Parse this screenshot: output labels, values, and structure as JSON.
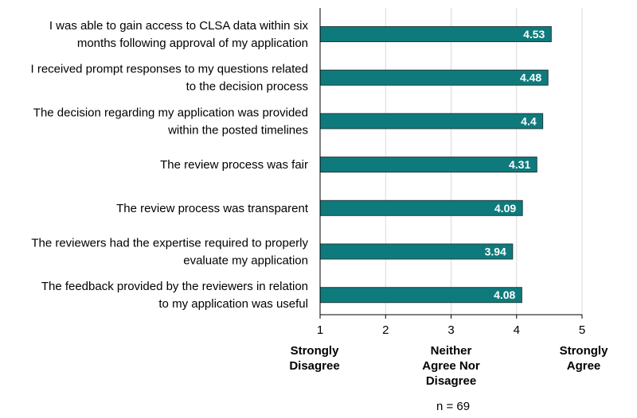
{
  "chart_data": {
    "type": "bar",
    "orientation": "horizontal",
    "categories": [
      [
        "I was able to gain access to CLSA data within six",
        "months following approval of my application"
      ],
      [
        "I received prompt responses to my questions related",
        "to the decision process"
      ],
      [
        "The decision regarding my application was provided",
        "within the posted timelines"
      ],
      [
        "The review process was fair"
      ],
      [
        "The review process was transparent"
      ],
      [
        "The reviewers had the expertise required to properly",
        "evaluate my application"
      ],
      [
        "The feedback provided by the reviewers in relation",
        "to my application was useful"
      ]
    ],
    "values": [
      4.53,
      4.48,
      4.4,
      4.31,
      4.09,
      3.94,
      4.08
    ],
    "value_labels": [
      "4.53",
      "4.48",
      "4.4",
      "4.31",
      "4.09",
      "3.94",
      "4.08"
    ],
    "xlim": [
      1,
      5
    ],
    "xticks": [
      1,
      2,
      3,
      4,
      5
    ],
    "anchor_labels": [
      {
        "at": 1,
        "lines": [
          "Strongly",
          "Disagree"
        ]
      },
      {
        "at": 3,
        "lines": [
          "Neither",
          "Agree Nor",
          "Disagree"
        ]
      },
      {
        "at": 5,
        "lines": [
          "Strongly",
          "Agree"
        ]
      }
    ],
    "grid": true,
    "bar_color": "#0e7a7c",
    "grid_color": "#d9d9d9",
    "footnote": "n = 69"
  }
}
